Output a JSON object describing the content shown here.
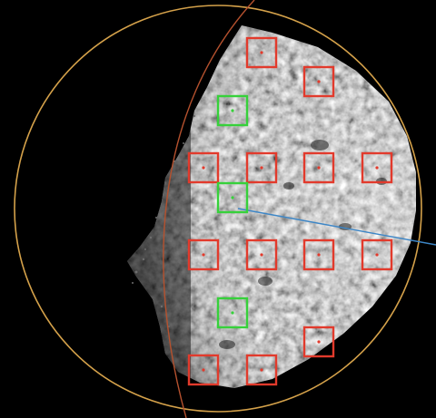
{
  "image": {
    "subject": "asteroid",
    "background_color": "#000000",
    "body_color": "#8e8e8e"
  },
  "overlays": {
    "limb_circle_color": "#d4a14a",
    "terminator_arc_color": "#b5512e",
    "vector_line_color": "#3d86c6"
  },
  "markers": {
    "selected_color": "#36d13a",
    "rejected_color": "#e23a2c",
    "items": [
      {
        "status": "rejected"
      },
      {
        "status": "rejected"
      },
      {
        "status": "selected"
      },
      {
        "status": "rejected"
      },
      {
        "status": "rejected"
      },
      {
        "status": "rejected"
      },
      {
        "status": "rejected"
      },
      {
        "status": "selected"
      },
      {
        "status": "rejected"
      },
      {
        "status": "rejected"
      },
      {
        "status": "rejected"
      },
      {
        "status": "rejected"
      },
      {
        "status": "selected"
      },
      {
        "status": "rejected"
      },
      {
        "status": "rejected"
      },
      {
        "status": "rejected"
      }
    ]
  }
}
